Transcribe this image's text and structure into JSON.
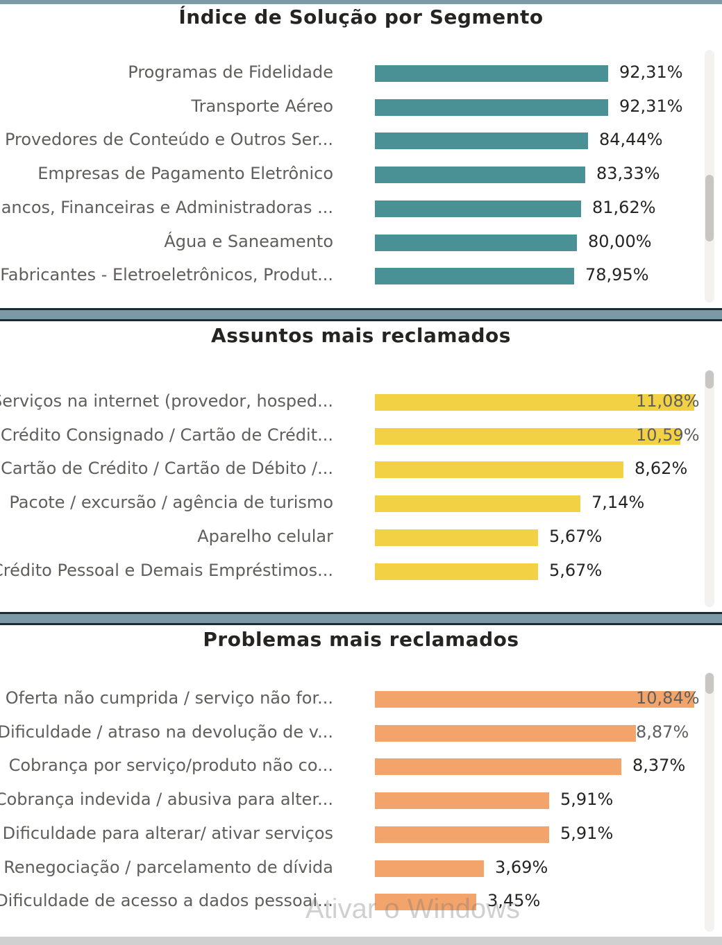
{
  "chart_data": [
    {
      "type": "bar",
      "orientation": "horizontal",
      "title": "Índice de Solução por Segmento",
      "color": "#4a9196",
      "categories": [
        "Programas de Fidelidade",
        "Transporte Aéreo",
        "Provedores de Conteúdo e Outros Ser...",
        "Empresas de Pagamento Eletrônico",
        "Bancos, Financeiras e Administradoras ...",
        "Água e Saneamento",
        "Fabricantes - Eletroeletrônicos, Produt..."
      ],
      "values": [
        92.31,
        92.31,
        84.44,
        83.33,
        81.62,
        80.0,
        78.95
      ],
      "value_labels": [
        "92,31%",
        "92,31%",
        "84,44%",
        "83,33%",
        "81,62%",
        "80,00%",
        "78,95%"
      ],
      "xlim": [
        0,
        100
      ],
      "grid": false,
      "legend": "none"
    },
    {
      "type": "bar",
      "orientation": "horizontal",
      "title": "Assuntos mais reclamados",
      "color": "#f2d144",
      "categories": [
        "Serviços na internet (provedor, hosped...",
        "Crédito Consignado / Cartão de Crédit...",
        "Cartão de Crédito / Cartão de Débito /...",
        "Pacote / excursão / agência de turismo",
        "Aparelho celular",
        "Crédito Pessoal e Demais Empréstimos..."
      ],
      "values": [
        11.08,
        10.59,
        8.62,
        7.14,
        5.67,
        5.67
      ],
      "value_labels": [
        "11,08%",
        "10,59%",
        "8,62%",
        "7,14%",
        "5,67%",
        "5,67%"
      ],
      "xlim": [
        0,
        11.08
      ],
      "grid": false,
      "legend": "none"
    },
    {
      "type": "bar",
      "orientation": "horizontal",
      "title": "Problemas mais reclamados",
      "color": "#f2a46b",
      "categories": [
        "Oferta não cumprida / serviço não for...",
        "Dificuldade / atraso na devolução de v...",
        "Cobrança por serviço/produto não co...",
        "Cobrança indevida / abusiva para alter...",
        "Dificuldade para alterar/ ativar serviços",
        "Renegociação / parcelamento de dívida",
        "Dificuldade de acesso a dados pessoai..."
      ],
      "values": [
        10.84,
        8.87,
        8.37,
        5.91,
        5.91,
        3.69,
        3.45
      ],
      "value_labels": [
        "10,84%",
        "8,87%",
        "8,37%",
        "5,91%",
        "5,91%",
        "3,69%",
        "3,45%"
      ],
      "xlim": [
        0,
        10.84
      ],
      "grid": false,
      "legend": "none"
    }
  ],
  "watermark": "Ativar o Windows"
}
